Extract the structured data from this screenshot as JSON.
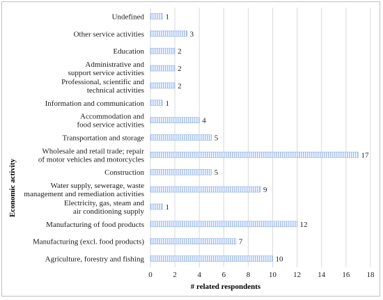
{
  "chart_data": {
    "type": "bar",
    "orientation": "horizontal",
    "title": "",
    "xlabel": "# related respondents",
    "ylabel": "Economic activity",
    "xlim": [
      0,
      18
    ],
    "x_ticks": [
      "0",
      "2",
      "4",
      "6",
      "8",
      "10",
      "12",
      "14",
      "16",
      "18"
    ],
    "grid": "vertical",
    "legend": "none",
    "bar_color": "#a9c3f2",
    "bar_pattern": "vertical-stripes",
    "categories": [
      [
        "Undefined"
      ],
      [
        "Other service activities"
      ],
      [
        "Education"
      ],
      [
        "Administrative and",
        "support service activities"
      ],
      [
        "Professional, scientific and",
        "technical activities"
      ],
      [
        "Information and communication"
      ],
      [
        "Accommodation and",
        "food service activities"
      ],
      [
        "Transportation and storage"
      ],
      [
        "Wholesale and retail trade; repair",
        "of motor vehicles and motorcycles"
      ],
      [
        "Construction"
      ],
      [
        "Water supply, sewerage, waste",
        "management and remediation activities"
      ],
      [
        "Electricity, gas, steam and",
        "air conditioning supply"
      ],
      [
        "Manufacturing of food products"
      ],
      [
        "Manufacturing (excl. food products)"
      ],
      [
        "Agriculture, forestry and fishing"
      ]
    ],
    "values": [
      1,
      3,
      2,
      2,
      2,
      1,
      4,
      5,
      17,
      5,
      9,
      1,
      12,
      7,
      10
    ],
    "data_labels": [
      "1",
      "3",
      "2",
      "2",
      "2",
      "1",
      "4",
      "5",
      "17",
      "5",
      "9",
      "1",
      "12",
      "7",
      "10"
    ]
  }
}
